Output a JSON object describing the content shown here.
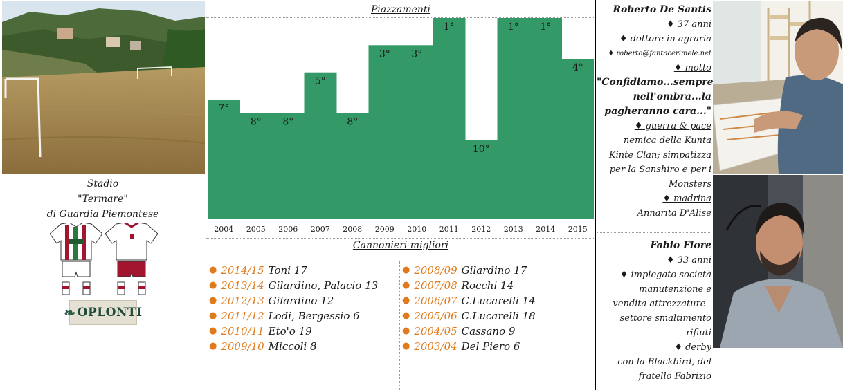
{
  "stadium": {
    "caption_line1": "Stadio",
    "caption_line2": "\"Termare\"",
    "caption_line3": "di Guardia Piemontese"
  },
  "sponsor": {
    "label": "OPLONTI"
  },
  "colors": {
    "chart_green": "#339966",
    "season_orange": "#e07a1c",
    "kit_red": "#a3152f",
    "kit_green": "#2a7a3d"
  },
  "chart_data": {
    "type": "bar",
    "title": "Piazzamenti",
    "categories": [
      "2004",
      "2005",
      "2006",
      "2007",
      "2008",
      "2009",
      "2010",
      "2011",
      "2012",
      "2013",
      "2014",
      "2015"
    ],
    "values": [
      7,
      8,
      8,
      5,
      8,
      3,
      3,
      1,
      10,
      1,
      1,
      4
    ],
    "labels": [
      "7°",
      "8°",
      "8°",
      "5°",
      "8°",
      "3°",
      "3°",
      "1°",
      "10°",
      "1°",
      "1°",
      "4°"
    ],
    "ylim": [
      1,
      12
    ],
    "y_inverted": true,
    "grid": false,
    "legend": "none"
  },
  "scorers": {
    "title": "Cannonieri migliori",
    "left": [
      {
        "season": "2014/15",
        "player": "Toni 17"
      },
      {
        "season": "2013/14",
        "player": "Gilardino, Palacio 13"
      },
      {
        "season": "2012/13",
        "player": "Gilardino 12"
      },
      {
        "season": "2011/12",
        "player": "Lodi, Bergessio 6"
      },
      {
        "season": "2010/11",
        "player": "Eto'o 19"
      },
      {
        "season": "2009/10",
        "player": "Miccoli 8"
      }
    ],
    "right": [
      {
        "season": "2008/09",
        "player": "Gilardino 17"
      },
      {
        "season": "2007/08",
        "player": "Rocchi 14"
      },
      {
        "season": "2006/07",
        "player": "C.Lucarelli 14"
      },
      {
        "season": "2005/06",
        "player": "C.Lucarelli 18"
      },
      {
        "season": "2004/05",
        "player": "Cassano 9"
      },
      {
        "season": "2003/04",
        "player": "Del Piero 6"
      }
    ]
  },
  "owner1": {
    "name": "Roberto De Santis",
    "age": "♦ 37 anni",
    "job": "♦ dottore in agraria",
    "email": "♦ roberto@fantacerimele.net",
    "motto_label": "♦ motto",
    "motto_1": "\"Confidiamo...sempre",
    "motto_2": "nell'ombra...la",
    "motto_3": "pagheranno cara...\"",
    "war_label": "♦ guerra & pace",
    "war_1": "nemica della Kunta",
    "war_2": "Kinte Clan; simpatizza",
    "war_3": "per la Sanshiro e per i",
    "war_4": "Monsters",
    "godmother_label": "♦ madrina",
    "godmother": "Annarita D'Alise"
  },
  "owner2": {
    "name": "Fabio Fiore",
    "age": "♦ 33 anni",
    "job_1": "♦ impiegato società",
    "job_2": "manutenzione e",
    "job_3": "vendita attrezzature -",
    "job_4": "settore smaltimento",
    "job_5": "rifiuti",
    "derby_label": "♦ derby",
    "derby_1": "con la Blackbird, del",
    "derby_2": "fratello Fabrizio"
  }
}
